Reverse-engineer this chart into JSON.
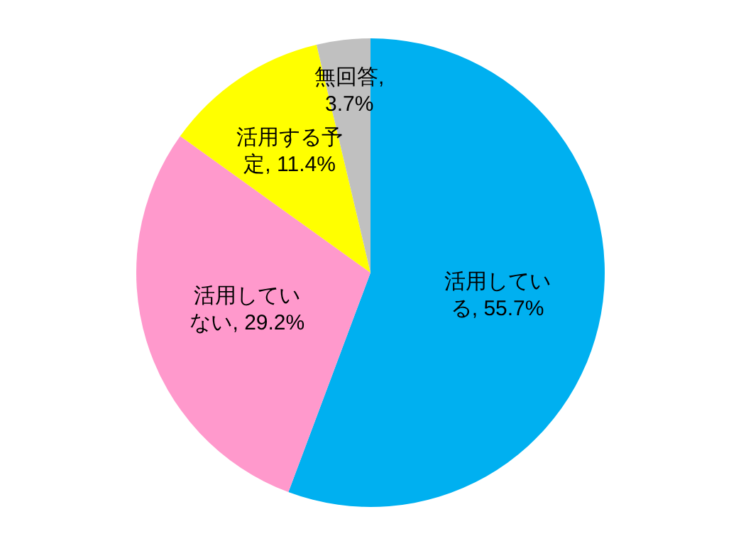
{
  "chart_data": {
    "type": "pie",
    "categories": [
      "活用している",
      "活用していない",
      "活用する予定",
      "無回答"
    ],
    "values": [
      55.7,
      29.2,
      11.4,
      3.7
    ],
    "colors": [
      "#00b0f0",
      "#ff99cc",
      "#ffff00",
      "#c0c0c0"
    ],
    "value_labels": [
      ", 55.7%",
      ", 29.2%",
      ", 11.4%",
      ", 3.7%"
    ],
    "legend": false
  }
}
